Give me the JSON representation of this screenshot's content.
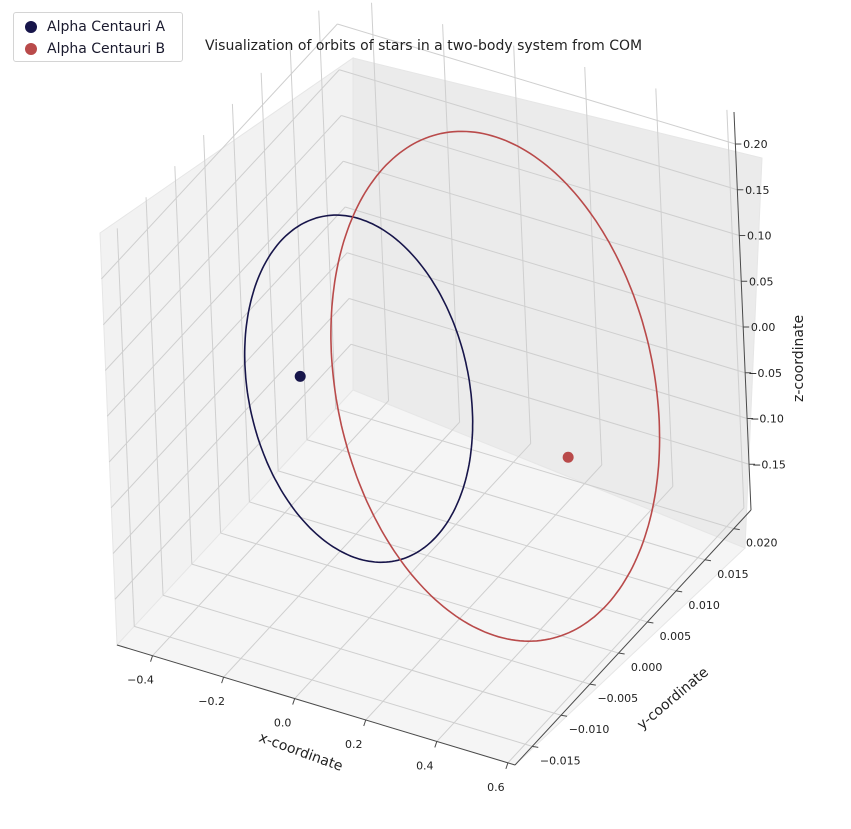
{
  "chart_data": {
    "type": "line",
    "projection": "3d",
    "title": "Visualization of orbits of stars in a two-body system from COM",
    "xlabel": "x-coordinate",
    "ylabel": "y-coordinate",
    "zlabel": "z-coordinate",
    "x_ticks": [
      "−0.4",
      "−0.2",
      "0.0",
      "0.2",
      "0.4",
      "0.6"
    ],
    "y_ticks": [
      "−0.015",
      "−0.010",
      "−0.005",
      "0.000",
      "0.005",
      "0.010",
      "0.015",
      "0.020"
    ],
    "z_ticks": [
      "−0.15",
      "−0.10",
      "−0.05",
      "0.00",
      "0.05",
      "0.10",
      "0.15",
      "0.20"
    ],
    "xlim": [
      -0.5,
      0.62
    ],
    "ylim": [
      -0.018,
      0.023
    ],
    "zlim": [
      -0.2,
      0.235
    ],
    "grid": true,
    "legend_position": "top-left",
    "series": [
      {
        "name": "Alpha Centauri A",
        "color": "#17154a",
        "orbit": {
          "center": [
            -0.13,
            0.0024,
            -0.0152
          ],
          "semi_axis_u": [
            0.124,
            0.0099,
            0.0
          ],
          "semi_axis_v": [
            -0.13,
            0.0,
            0.167
          ]
        },
        "current_position": [
          -0.254,
          0.0,
          0.0
        ]
      },
      {
        "name": "Alpha Centauri B",
        "color": "#b94a4a",
        "orbit": {
          "center": [
            0.239,
            0.0036,
            0.0225
          ],
          "semi_axis_u": [
            0.173,
            0.0145,
            0.0
          ],
          "semi_axis_v": [
            -0.191,
            0.0,
            0.245
          ]
        },
        "current_position": [
          0.5,
          0.0,
          0.0
        ]
      }
    ]
  }
}
